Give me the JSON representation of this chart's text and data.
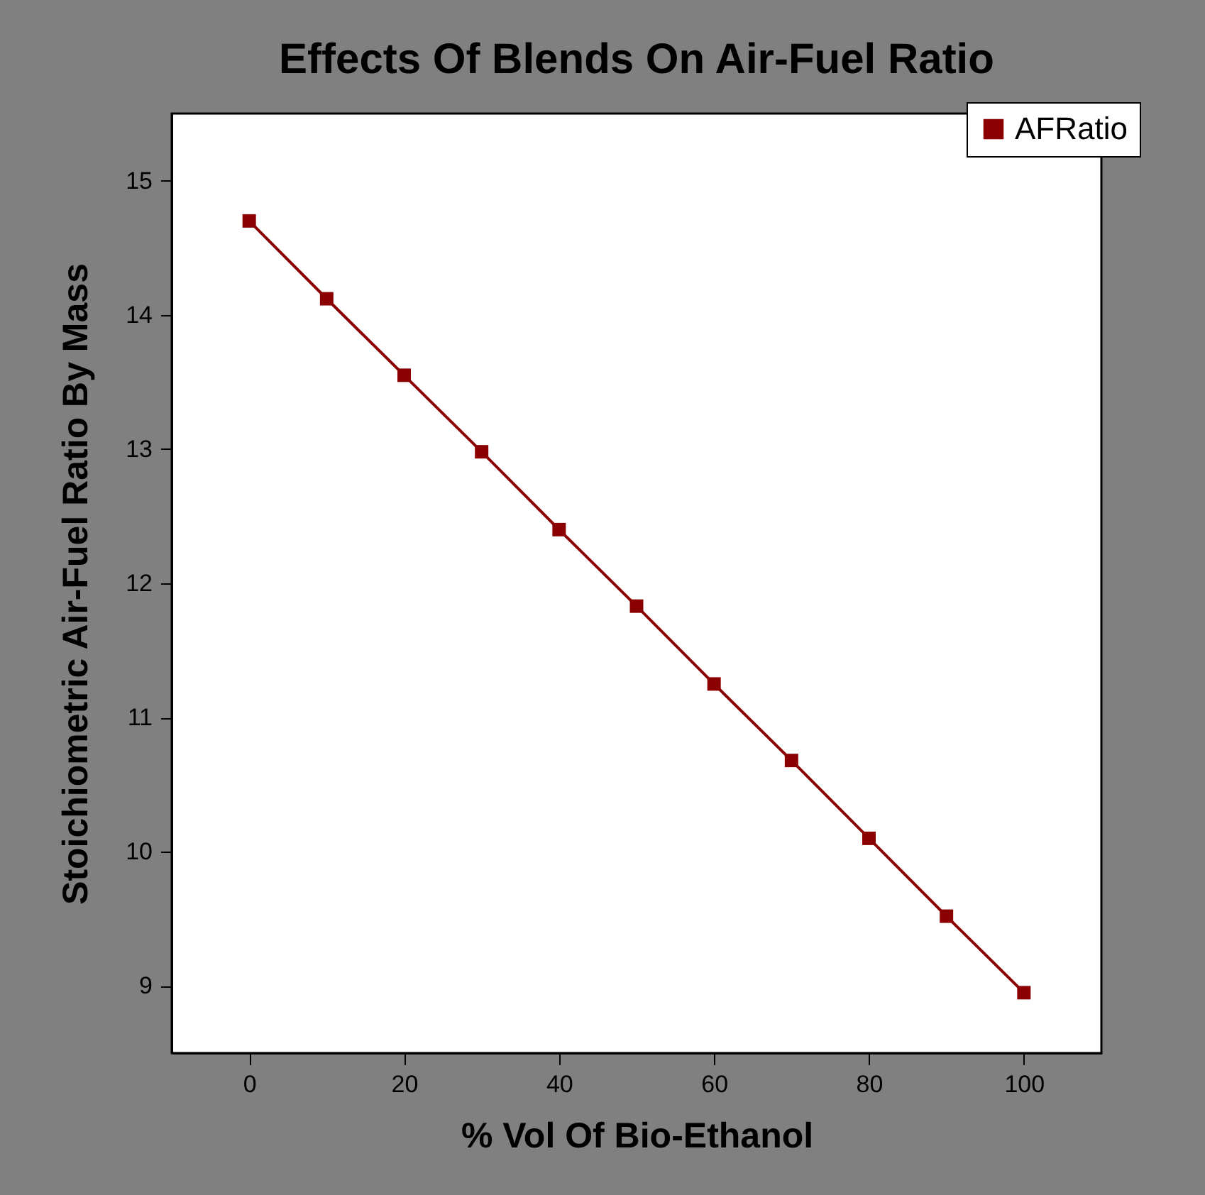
{
  "chart_data": {
    "type": "line",
    "title": "Effects Of Blends On Air-Fuel Ratio",
    "xlabel": "% Vol Of Bio-Ethanol",
    "ylabel": "Stoichiometric Air-Fuel Ratio By Mass",
    "x": [
      0,
      10,
      20,
      30,
      40,
      50,
      60,
      70,
      80,
      90,
      100
    ],
    "series": [
      {
        "name": "AFRatio",
        "color": "#8b0000",
        "values": [
          14.7,
          14.12,
          13.55,
          12.98,
          12.4,
          11.83,
          11.25,
          10.68,
          10.1,
          9.52,
          8.95
        ]
      }
    ],
    "xlim": [
      -10,
      110
    ],
    "xticks": [
      0,
      20,
      40,
      60,
      80,
      100
    ],
    "ylim": [
      8.5,
      15.5
    ],
    "yticks": [
      9,
      10,
      11,
      12,
      13,
      14,
      15
    ],
    "grid": false,
    "legend": "top right",
    "marker": "square",
    "line_style": "solid"
  }
}
